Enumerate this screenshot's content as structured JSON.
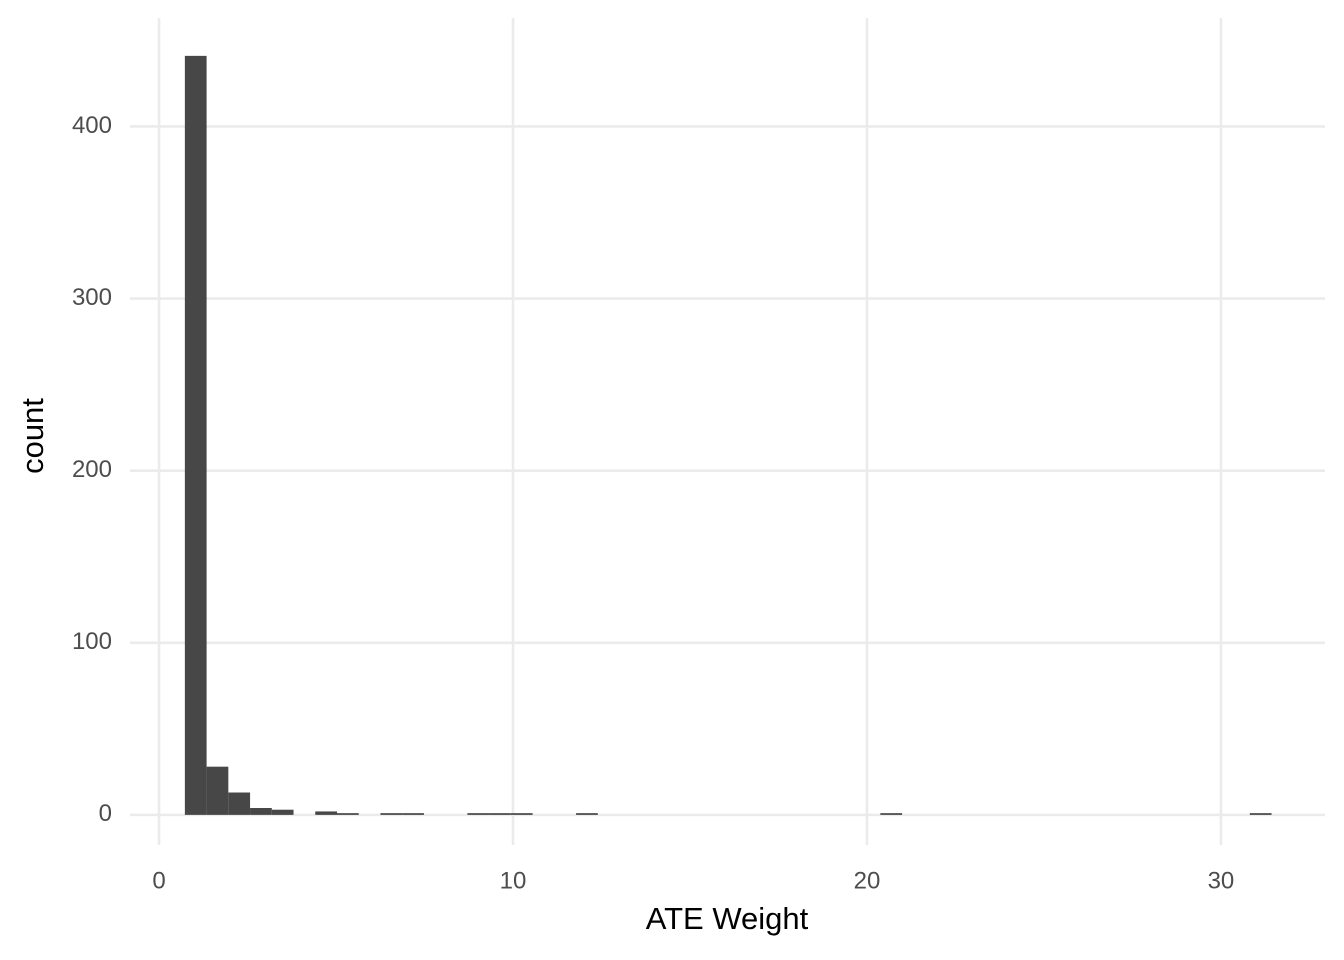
{
  "chart_data": {
    "type": "histogram",
    "x_label": "ATE Weight",
    "y_label": "count",
    "bins": [
      0.73,
      1.344,
      1.958,
      2.572,
      3.186,
      3.8,
      4.414,
      5.028,
      5.642,
      6.256,
      6.87,
      7.484,
      8.098,
      8.712,
      9.326,
      9.94,
      10.554,
      11.168,
      11.782,
      12.396,
      13.01,
      13.624,
      14.238,
      14.852,
      15.466,
      16.08,
      16.694,
      17.308,
      17.922,
      18.536,
      19.15,
      19.764,
      20.378,
      20.992,
      21.606,
      22.22,
      22.834,
      23.448,
      24.062,
      24.676,
      25.29,
      25.904,
      26.518,
      27.132,
      27.746,
      28.36,
      28.974,
      29.588,
      30.202,
      30.816,
      31.43
    ],
    "values": [
      441,
      28,
      13,
      4,
      3,
      0,
      2,
      1,
      0,
      1,
      1,
      0,
      0,
      1,
      1,
      1,
      0,
      0,
      1,
      0,
      0,
      0,
      0,
      0,
      0,
      0,
      0,
      0,
      0,
      0,
      0,
      0,
      1,
      0,
      0,
      0,
      0,
      0,
      0,
      0,
      0,
      0,
      0,
      0,
      0,
      0,
      0,
      0,
      0,
      1
    ],
    "color": "#474747",
    "xlim": [
      -0.82,
      32.94
    ],
    "xticks": [
      0,
      10,
      20,
      30
    ],
    "ylim": [
      -17.5,
      463
    ],
    "yticks": [
      0,
      100,
      200,
      300,
      400
    ],
    "grid": true
  }
}
